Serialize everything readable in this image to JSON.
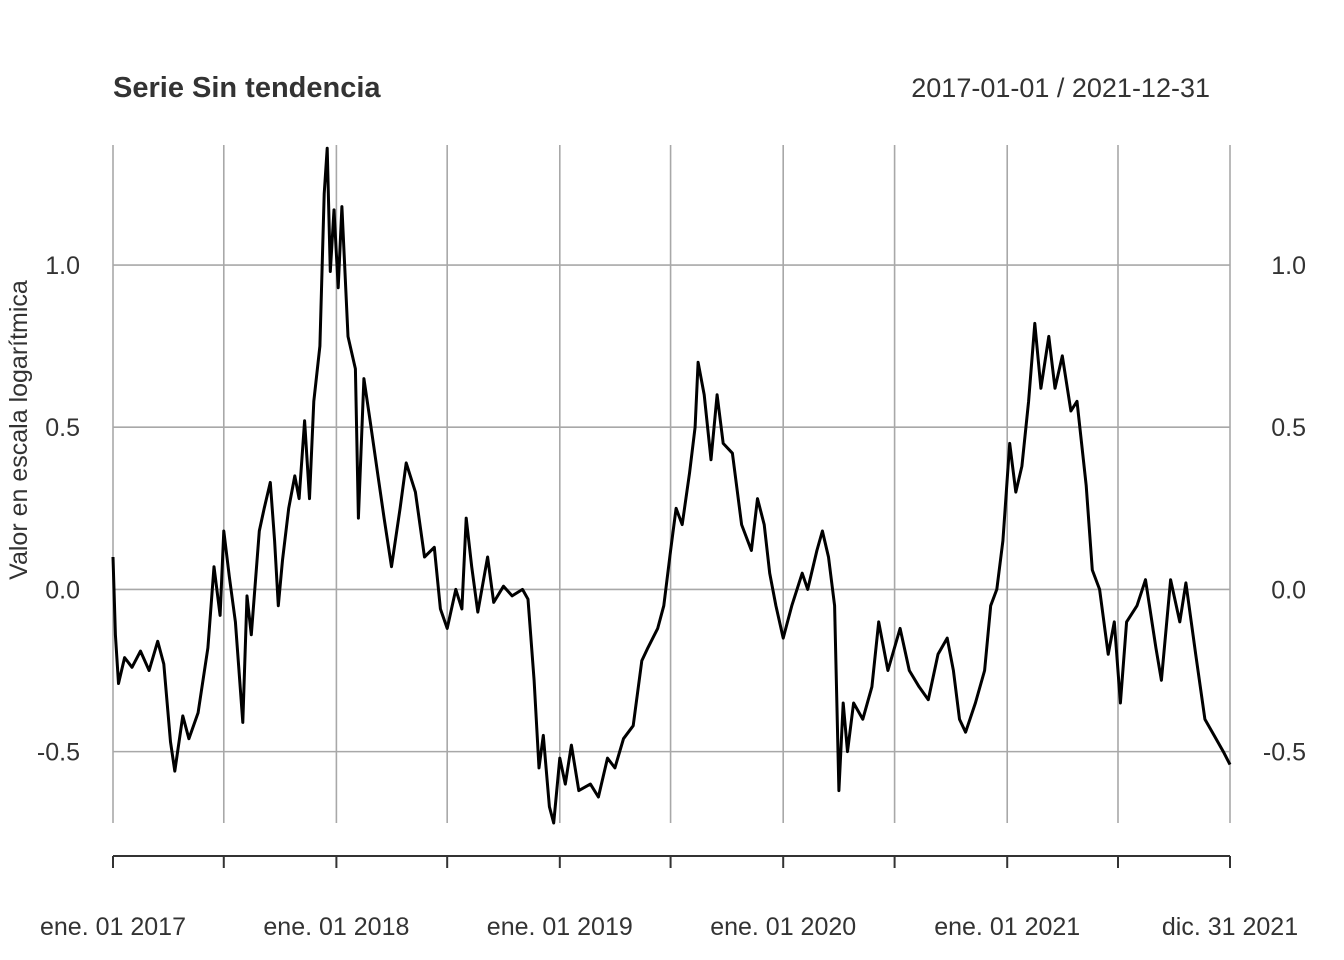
{
  "chart_data": {
    "type": "line",
    "title": "Serie Sin tendencia",
    "date_range_label": "2017-01-01 / 2021-12-31",
    "ylabel": "Valor en escala logarítmica",
    "xlabel": "",
    "x_start": "2017-01-01",
    "x_end": "2021-12-31",
    "ylim": [
      -0.72,
      1.37
    ],
    "yticks": [
      {
        "value": 1.0,
        "label": "1.0"
      },
      {
        "value": 0.5,
        "label": "0.5"
      },
      {
        "value": 0.0,
        "label": "0.0"
      },
      {
        "value": -0.5,
        "label": "-0.5"
      }
    ],
    "xticks": [
      {
        "date": "2017-01-01",
        "label": "ene. 01 2017"
      },
      {
        "date": "2018-01-01",
        "label": "ene. 01 2018"
      },
      {
        "date": "2019-01-01",
        "label": "ene. 01 2019"
      },
      {
        "date": "2020-01-01",
        "label": "ene. 01 2020"
      },
      {
        "date": "2021-01-01",
        "label": "ene. 01 2021"
      },
      {
        "date": "2021-12-31",
        "label": "dic. 31 2021"
      }
    ],
    "grid": true,
    "series": [
      {
        "color": "#000000",
        "points": [
          {
            "date": "2017-01-01",
            "value": 0.1
          },
          {
            "date": "2017-01-05",
            "value": -0.14
          },
          {
            "date": "2017-01-10",
            "value": -0.29
          },
          {
            "date": "2017-01-20",
            "value": -0.21
          },
          {
            "date": "2017-02-01",
            "value": -0.24
          },
          {
            "date": "2017-02-15",
            "value": -0.19
          },
          {
            "date": "2017-03-01",
            "value": -0.25
          },
          {
            "date": "2017-03-15",
            "value": -0.16
          },
          {
            "date": "2017-03-25",
            "value": -0.23
          },
          {
            "date": "2017-04-05",
            "value": -0.47
          },
          {
            "date": "2017-04-12",
            "value": -0.56
          },
          {
            "date": "2017-04-25",
            "value": -0.39
          },
          {
            "date": "2017-05-05",
            "value": -0.46
          },
          {
            "date": "2017-05-20",
            "value": -0.38
          },
          {
            "date": "2017-06-05",
            "value": -0.18
          },
          {
            "date": "2017-06-15",
            "value": 0.07
          },
          {
            "date": "2017-06-25",
            "value": -0.08
          },
          {
            "date": "2017-07-01",
            "value": 0.18
          },
          {
            "date": "2017-07-10",
            "value": 0.04
          },
          {
            "date": "2017-07-20",
            "value": -0.1
          },
          {
            "date": "2017-08-01",
            "value": -0.41
          },
          {
            "date": "2017-08-08",
            "value": -0.02
          },
          {
            "date": "2017-08-15",
            "value": -0.14
          },
          {
            "date": "2017-08-28",
            "value": 0.18
          },
          {
            "date": "2017-09-05",
            "value": 0.25
          },
          {
            "date": "2017-09-15",
            "value": 0.33
          },
          {
            "date": "2017-09-22",
            "value": 0.15
          },
          {
            "date": "2017-09-28",
            "value": -0.05
          },
          {
            "date": "2017-10-05",
            "value": 0.09
          },
          {
            "date": "2017-10-15",
            "value": 0.25
          },
          {
            "date": "2017-10-25",
            "value": 0.35
          },
          {
            "date": "2017-11-01",
            "value": 0.28
          },
          {
            "date": "2017-11-10",
            "value": 0.52
          },
          {
            "date": "2017-11-18",
            "value": 0.28
          },
          {
            "date": "2017-11-25",
            "value": 0.58
          },
          {
            "date": "2017-12-05",
            "value": 0.75
          },
          {
            "date": "2017-12-12",
            "value": 1.22
          },
          {
            "date": "2017-12-17",
            "value": 1.36
          },
          {
            "date": "2017-12-22",
            "value": 0.98
          },
          {
            "date": "2017-12-28",
            "value": 1.17
          },
          {
            "date": "2018-01-04",
            "value": 0.93
          },
          {
            "date": "2018-01-10",
            "value": 1.18
          },
          {
            "date": "2018-01-20",
            "value": 0.78
          },
          {
            "date": "2018-02-01",
            "value": 0.68
          },
          {
            "date": "2018-02-06",
            "value": 0.22
          },
          {
            "date": "2018-02-15",
            "value": 0.65
          },
          {
            "date": "2018-02-25",
            "value": 0.52
          },
          {
            "date": "2018-03-10",
            "value": 0.35
          },
          {
            "date": "2018-03-20",
            "value": 0.22
          },
          {
            "date": "2018-04-01",
            "value": 0.07
          },
          {
            "date": "2018-04-15",
            "value": 0.25
          },
          {
            "date": "2018-04-25",
            "value": 0.39
          },
          {
            "date": "2018-05-10",
            "value": 0.3
          },
          {
            "date": "2018-05-25",
            "value": 0.1
          },
          {
            "date": "2018-06-10",
            "value": 0.13
          },
          {
            "date": "2018-06-20",
            "value": -0.06
          },
          {
            "date": "2018-07-01",
            "value": -0.12
          },
          {
            "date": "2018-07-15",
            "value": 0.0
          },
          {
            "date": "2018-07-25",
            "value": -0.06
          },
          {
            "date": "2018-08-01",
            "value": 0.22
          },
          {
            "date": "2018-08-10",
            "value": 0.07
          },
          {
            "date": "2018-08-20",
            "value": -0.07
          },
          {
            "date": "2018-09-05",
            "value": 0.1
          },
          {
            "date": "2018-09-15",
            "value": -0.04
          },
          {
            "date": "2018-10-01",
            "value": 0.01
          },
          {
            "date": "2018-10-15",
            "value": -0.02
          },
          {
            "date": "2018-11-01",
            "value": 0.0
          },
          {
            "date": "2018-11-10",
            "value": -0.03
          },
          {
            "date": "2018-11-20",
            "value": -0.28
          },
          {
            "date": "2018-11-28",
            "value": -0.55
          },
          {
            "date": "2018-12-05",
            "value": -0.45
          },
          {
            "date": "2018-12-15",
            "value": -0.67
          },
          {
            "date": "2018-12-22",
            "value": -0.72
          },
          {
            "date": "2019-01-01",
            "value": -0.52
          },
          {
            "date": "2019-01-10",
            "value": -0.6
          },
          {
            "date": "2019-01-20",
            "value": -0.48
          },
          {
            "date": "2019-02-01",
            "value": -0.62
          },
          {
            "date": "2019-02-20",
            "value": -0.6
          },
          {
            "date": "2019-03-05",
            "value": -0.64
          },
          {
            "date": "2019-03-20",
            "value": -0.52
          },
          {
            "date": "2019-04-01",
            "value": -0.55
          },
          {
            "date": "2019-04-15",
            "value": -0.46
          },
          {
            "date": "2019-05-01",
            "value": -0.42
          },
          {
            "date": "2019-05-15",
            "value": -0.22
          },
          {
            "date": "2019-05-25",
            "value": -0.18
          },
          {
            "date": "2019-06-10",
            "value": -0.12
          },
          {
            "date": "2019-06-20",
            "value": -0.05
          },
          {
            "date": "2019-07-01",
            "value": 0.12
          },
          {
            "date": "2019-07-10",
            "value": 0.25
          },
          {
            "date": "2019-07-20",
            "value": 0.2
          },
          {
            "date": "2019-08-01",
            "value": 0.36
          },
          {
            "date": "2019-08-10",
            "value": 0.5
          },
          {
            "date": "2019-08-15",
            "value": 0.7
          },
          {
            "date": "2019-08-25",
            "value": 0.6
          },
          {
            "date": "2019-09-05",
            "value": 0.4
          },
          {
            "date": "2019-09-15",
            "value": 0.6
          },
          {
            "date": "2019-09-25",
            "value": 0.45
          },
          {
            "date": "2019-10-10",
            "value": 0.42
          },
          {
            "date": "2019-10-25",
            "value": 0.2
          },
          {
            "date": "2019-11-10",
            "value": 0.12
          },
          {
            "date": "2019-11-20",
            "value": 0.28
          },
          {
            "date": "2019-12-01",
            "value": 0.2
          },
          {
            "date": "2019-12-10",
            "value": 0.05
          },
          {
            "date": "2019-12-20",
            "value": -0.05
          },
          {
            "date": "2020-01-01",
            "value": -0.15
          },
          {
            "date": "2020-01-15",
            "value": -0.05
          },
          {
            "date": "2020-02-01",
            "value": 0.05
          },
          {
            "date": "2020-02-10",
            "value": 0.0
          },
          {
            "date": "2020-02-25",
            "value": 0.12
          },
          {
            "date": "2020-03-05",
            "value": 0.18
          },
          {
            "date": "2020-03-15",
            "value": 0.1
          },
          {
            "date": "2020-03-25",
            "value": -0.05
          },
          {
            "date": "2020-04-01",
            "value": -0.62
          },
          {
            "date": "2020-04-08",
            "value": -0.35
          },
          {
            "date": "2020-04-15",
            "value": -0.5
          },
          {
            "date": "2020-04-25",
            "value": -0.35
          },
          {
            "date": "2020-05-10",
            "value": -0.4
          },
          {
            "date": "2020-05-25",
            "value": -0.3
          },
          {
            "date": "2020-06-05",
            "value": -0.1
          },
          {
            "date": "2020-06-20",
            "value": -0.25
          },
          {
            "date": "2020-07-10",
            "value": -0.12
          },
          {
            "date": "2020-07-25",
            "value": -0.25
          },
          {
            "date": "2020-08-10",
            "value": -0.3
          },
          {
            "date": "2020-08-25",
            "value": -0.34
          },
          {
            "date": "2020-09-10",
            "value": -0.2
          },
          {
            "date": "2020-09-25",
            "value": -0.15
          },
          {
            "date": "2020-10-05",
            "value": -0.25
          },
          {
            "date": "2020-10-15",
            "value": -0.4
          },
          {
            "date": "2020-10-25",
            "value": -0.44
          },
          {
            "date": "2020-11-10",
            "value": -0.35
          },
          {
            "date": "2020-11-25",
            "value": -0.25
          },
          {
            "date": "2020-12-05",
            "value": -0.05
          },
          {
            "date": "2020-12-15",
            "value": 0.0
          },
          {
            "date": "2020-12-25",
            "value": 0.15
          },
          {
            "date": "2021-01-05",
            "value": 0.45
          },
          {
            "date": "2021-01-15",
            "value": 0.3
          },
          {
            "date": "2021-01-25",
            "value": 0.38
          },
          {
            "date": "2021-02-05",
            "value": 0.58
          },
          {
            "date": "2021-02-15",
            "value": 0.82
          },
          {
            "date": "2021-02-25",
            "value": 0.62
          },
          {
            "date": "2021-03-10",
            "value": 0.78
          },
          {
            "date": "2021-03-20",
            "value": 0.62
          },
          {
            "date": "2021-04-01",
            "value": 0.72
          },
          {
            "date": "2021-04-15",
            "value": 0.55
          },
          {
            "date": "2021-04-25",
            "value": 0.58
          },
          {
            "date": "2021-05-10",
            "value": 0.32
          },
          {
            "date": "2021-05-20",
            "value": 0.06
          },
          {
            "date": "2021-06-01",
            "value": 0.0
          },
          {
            "date": "2021-06-15",
            "value": -0.2
          },
          {
            "date": "2021-06-25",
            "value": -0.1
          },
          {
            "date": "2021-07-05",
            "value": -0.35
          },
          {
            "date": "2021-07-15",
            "value": -0.1
          },
          {
            "date": "2021-08-01",
            "value": -0.05
          },
          {
            "date": "2021-08-15",
            "value": 0.03
          },
          {
            "date": "2021-09-01",
            "value": -0.18
          },
          {
            "date": "2021-09-10",
            "value": -0.28
          },
          {
            "date": "2021-09-25",
            "value": 0.03
          },
          {
            "date": "2021-10-10",
            "value": -0.1
          },
          {
            "date": "2021-10-20",
            "value": 0.02
          },
          {
            "date": "2021-11-05",
            "value": -0.2
          },
          {
            "date": "2021-11-20",
            "value": -0.4
          },
          {
            "date": "2021-12-05",
            "value": -0.45
          },
          {
            "date": "2021-12-20",
            "value": -0.5
          },
          {
            "date": "2021-12-31",
            "value": -0.54
          }
        ]
      }
    ]
  }
}
